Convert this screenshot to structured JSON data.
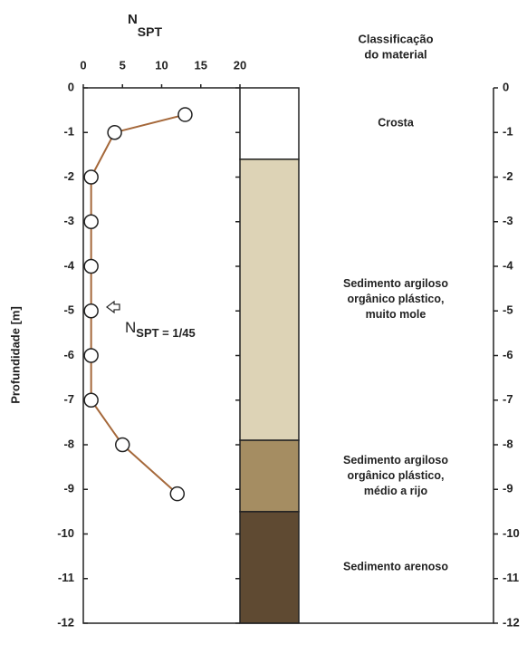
{
  "chart_data": {
    "type": "line",
    "title": "N",
    "title_sub": "SPT",
    "ylabel": "Profundidade [m]",
    "x": [
      13,
      4,
      1,
      1,
      1,
      1,
      1,
      1,
      5,
      12
    ],
    "y": [
      -0.6,
      -1,
      -2,
      -3,
      -4,
      -5,
      -6,
      -7,
      -8,
      -9.1
    ],
    "color": "#a5683a",
    "xlim": [
      0,
      20
    ],
    "xticks": [
      0,
      5,
      10,
      15,
      20
    ],
    "ylim": [
      -12,
      0
    ],
    "yticks": [
      0,
      -1,
      -2,
      -3,
      -4,
      -5,
      -6,
      -7,
      -8,
      -9,
      -10,
      -11,
      -12
    ],
    "annotation": {
      "text": "N",
      "sub": "SPT = 1/45",
      "y": -5.4
    },
    "class_title": [
      "Classificação",
      "do material"
    ],
    "layers": [
      {
        "label": [
          "Crosta"
        ],
        "top": 0,
        "bottom": -1.6,
        "color": "#ffffff"
      },
      {
        "label": [
          "Sedimento argiloso",
          "orgânico plástico,",
          "muito mole"
        ],
        "top": -1.6,
        "bottom": -7.9,
        "color": "#ddd3b6"
      },
      {
        "label": [
          "Sedimento argiloso",
          "orgânico plástico,",
          "médio a rijo"
        ],
        "top": -7.9,
        "bottom": -9.5,
        "color": "#a58d62"
      },
      {
        "label": [
          "Sedimento arenoso"
        ],
        "top": -9.5,
        "bottom": -12,
        "color": "#5f4a32"
      }
    ]
  }
}
